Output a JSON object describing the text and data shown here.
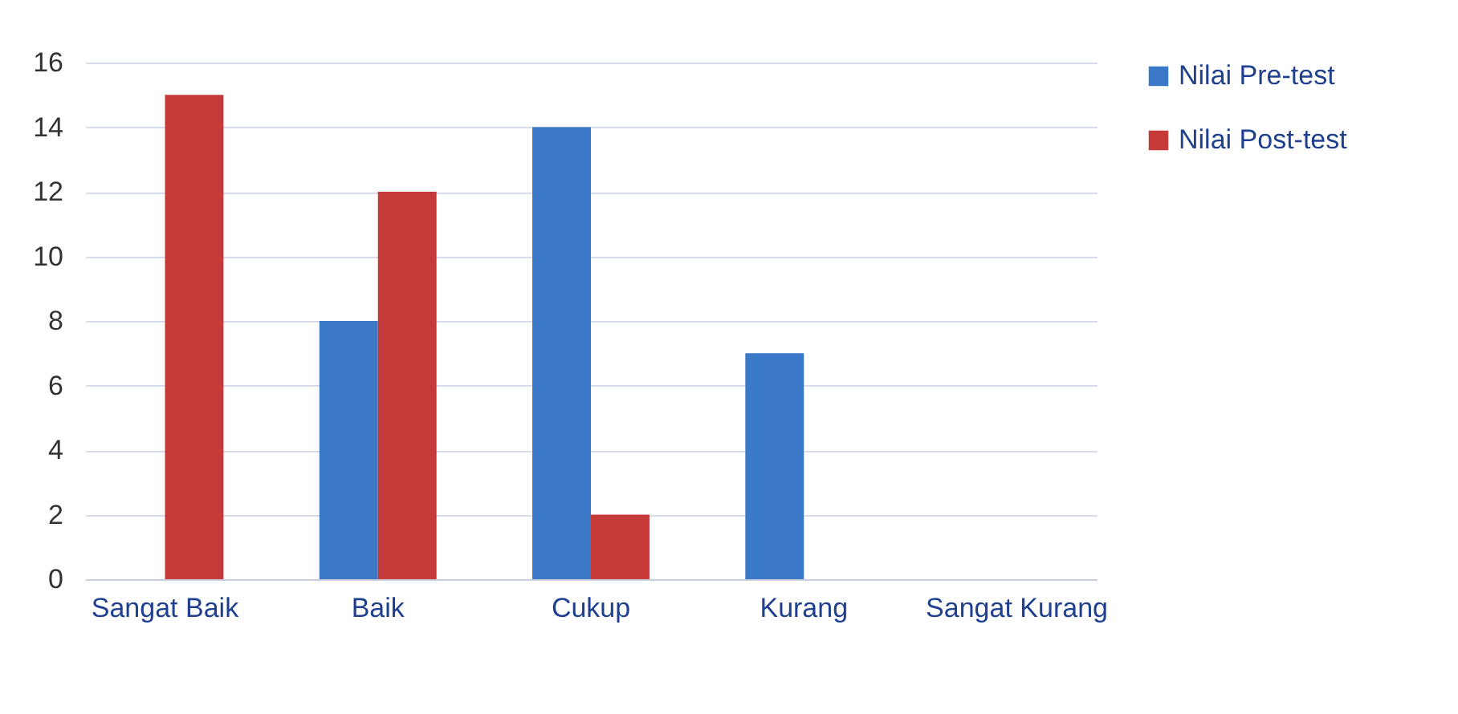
{
  "chart_data": {
    "type": "bar",
    "categories": [
      "Sangat Baik",
      "Baik",
      "Cukup",
      "Kurang",
      "Sangat Kurang"
    ],
    "series": [
      {
        "name": "Nilai Pre-test",
        "color": "#3b78c8",
        "values": [
          0,
          8,
          14,
          7,
          0
        ]
      },
      {
        "name": "Nilai Post-test",
        "color": "#c73a3a",
        "values": [
          15,
          12,
          2,
          0,
          0
        ]
      }
    ],
    "ylim": [
      0,
      16
    ],
    "yticks": [
      0,
      2,
      4,
      6,
      8,
      10,
      12,
      14,
      16
    ],
    "grid": "y",
    "legend": "right"
  }
}
